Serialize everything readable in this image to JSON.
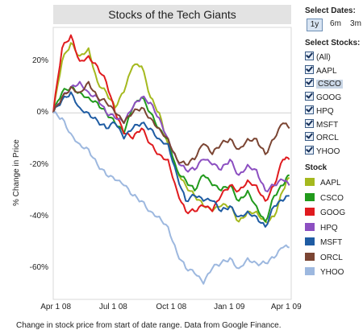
{
  "chart": {
    "title": "Stocks of the Tech Giants",
    "ylabel": "% Change in Price",
    "footnote": "Change in stock price from start of date range. Data from Google Finance."
  },
  "controls": {
    "select_dates_label": "Select Dates:",
    "date_options": [
      "1y",
      "6m",
      "3m"
    ],
    "date_selected": "1y",
    "select_stocks_label": "Select Stocks:",
    "stock_options": [
      "(All)",
      "AAPL",
      "CSCO",
      "GOOG",
      "HPQ",
      "MSFT",
      "ORCL",
      "YHOO"
    ],
    "highlighted_option": "CSCO",
    "legend_title": "Stock"
  },
  "chart_data": {
    "type": "line",
    "title": "Stocks of the Tech Giants",
    "xlabel": "",
    "ylabel": "% Change in Price",
    "x_tick_labels": [
      "Apr 1 08",
      "Jul 1 08",
      "Oct 1 08",
      "Jan 1 09",
      "Apr 1 09"
    ],
    "x_range": [
      "2008-03-28",
      "2009-04-09"
    ],
    "y_tick_labels": [
      "20%",
      "0%",
      "-20%",
      "-40%",
      "-60%"
    ],
    "ylim": [
      -72,
      33
    ],
    "grid": false,
    "legend_position": "right",
    "x": [
      "2008-03-28",
      "2008-04-11",
      "2008-04-25",
      "2008-05-09",
      "2008-05-23",
      "2008-06-06",
      "2008-06-20",
      "2008-07-04",
      "2008-07-18",
      "2008-08-01",
      "2008-08-15",
      "2008-08-29",
      "2008-09-12",
      "2008-09-26",
      "2008-10-10",
      "2008-10-24",
      "2008-11-07",
      "2008-11-21",
      "2008-12-05",
      "2008-12-19",
      "2009-01-02",
      "2009-01-16",
      "2009-01-30",
      "2009-02-13",
      "2009-02-27",
      "2009-03-13",
      "2009-03-27",
      "2009-04-06"
    ],
    "series": [
      {
        "name": "AAPL",
        "color": "#a5b91f",
        "values": [
          0,
          20,
          27,
          22,
          25,
          12,
          8,
          2,
          8,
          18,
          18,
          6,
          0,
          -12,
          -22,
          -28,
          -32,
          -36,
          -38,
          -36,
          -36,
          -42,
          -38,
          -38,
          -42,
          -40,
          -30,
          -25
        ]
      },
      {
        "name": "CSCO",
        "color": "#219a1c",
        "values": [
          0,
          8,
          10,
          8,
          6,
          4,
          0,
          -4,
          -8,
          2,
          6,
          0,
          -6,
          -10,
          -22,
          -26,
          -30,
          -24,
          -28,
          -30,
          -28,
          -34,
          -30,
          -36,
          -42,
          -32,
          -28,
          -24
        ]
      },
      {
        "name": "GOOG",
        "color": "#e01b1f",
        "values": [
          0,
          25,
          30,
          20,
          22,
          18,
          12,
          0,
          -8,
          -10,
          -6,
          -12,
          -16,
          -18,
          -30,
          -38,
          -38,
          -36,
          -38,
          -32,
          -28,
          -30,
          -26,
          -28,
          -34,
          -28,
          -18,
          -18
        ]
      },
      {
        "name": "HPQ",
        "color": "#8c4fc1",
        "values": [
          0,
          6,
          10,
          12,
          8,
          6,
          0,
          -2,
          -4,
          2,
          6,
          4,
          -2,
          -10,
          -18,
          -22,
          -22,
          -18,
          -20,
          -22,
          -18,
          -24,
          -20,
          -22,
          -30,
          -28,
          -26,
          -28
        ]
      },
      {
        "name": "MSFT",
        "color": "#1f5ca3",
        "values": [
          0,
          5,
          8,
          2,
          0,
          -3,
          -6,
          -4,
          -10,
          -6,
          -4,
          -6,
          -10,
          -12,
          -24,
          -34,
          -32,
          -34,
          -34,
          -38,
          -36,
          -40,
          -38,
          -40,
          -44,
          -36,
          -34,
          -32
        ]
      },
      {
        "name": "ORCL",
        "color": "#7b4533",
        "values": [
          0,
          6,
          10,
          8,
          12,
          6,
          4,
          0,
          -4,
          0,
          2,
          -2,
          -6,
          -10,
          -18,
          -20,
          -18,
          -12,
          -16,
          -12,
          -10,
          -14,
          -10,
          -10,
          -16,
          -10,
          -4,
          -6
        ]
      },
      {
        "name": "YHOO",
        "color": "#9db8df",
        "values": [
          0,
          -2,
          -8,
          -12,
          -14,
          -20,
          -24,
          -26,
          -28,
          -32,
          -34,
          -38,
          -40,
          -44,
          -54,
          -60,
          -62,
          -66,
          -60,
          -58,
          -56,
          -60,
          -56,
          -58,
          -58,
          -56,
          -52,
          -52
        ]
      }
    ]
  }
}
